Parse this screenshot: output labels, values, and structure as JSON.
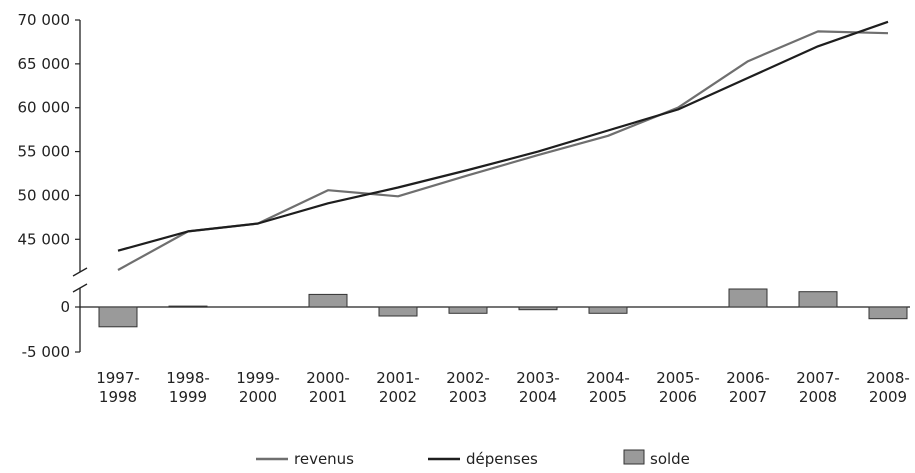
{
  "chart_data": {
    "type": "line",
    "title": "",
    "xlabel": "",
    "ylabel": "",
    "axis_break": true,
    "categories": [
      [
        "1997-",
        "1998"
      ],
      [
        "1998-",
        "1999"
      ],
      [
        "1999-",
        "2000"
      ],
      [
        "2000-",
        "2001"
      ],
      [
        "2001-",
        "2002"
      ],
      [
        "2002-",
        "2003"
      ],
      [
        "2003-",
        "2004"
      ],
      [
        "2004-",
        "2005"
      ],
      [
        "2005-",
        "2006"
      ],
      [
        "2006-",
        "2007"
      ],
      [
        "2007-",
        "2008"
      ],
      [
        "2008-",
        "2009"
      ]
    ],
    "upper_axis": {
      "ylim": [
        41500,
        70000
      ],
      "ticks": [
        "70 000",
        "65 000",
        "60 000",
        "55 000",
        "50 000",
        "45 000"
      ],
      "tick_values": [
        70000,
        65000,
        60000,
        55000,
        50000,
        45000
      ]
    },
    "lower_axis": {
      "ylim": [
        -5000,
        2800
      ],
      "ticks": [
        "0",
        "-5 000"
      ],
      "tick_values": [
        0,
        -5000
      ]
    },
    "series": [
      {
        "name": "revenus",
        "type": "line",
        "color": "#6f6f6f",
        "values": [
          41500,
          45900,
          46800,
          50600,
          49900,
          52300,
          54600,
          56800,
          60000,
          65300,
          68700,
          68500
        ]
      },
      {
        "name": "dépenses",
        "type": "line",
        "color": "#1e1e1e",
        "values": [
          43700,
          45900,
          46800,
          49100,
          50900,
          52900,
          55000,
          57400,
          59800,
          63400,
          67000,
          69800
        ]
      },
      {
        "name": "solde",
        "type": "bar",
        "color": "#9a9a9a",
        "values": [
          -2200,
          100,
          0,
          1400,
          -1000,
          -700,
          -300,
          -700,
          0,
          2000,
          1700,
          -1300
        ]
      }
    ],
    "legend": {
      "position": "bottom-center",
      "entries": [
        "revenus",
        "dépenses",
        "solde"
      ]
    }
  }
}
